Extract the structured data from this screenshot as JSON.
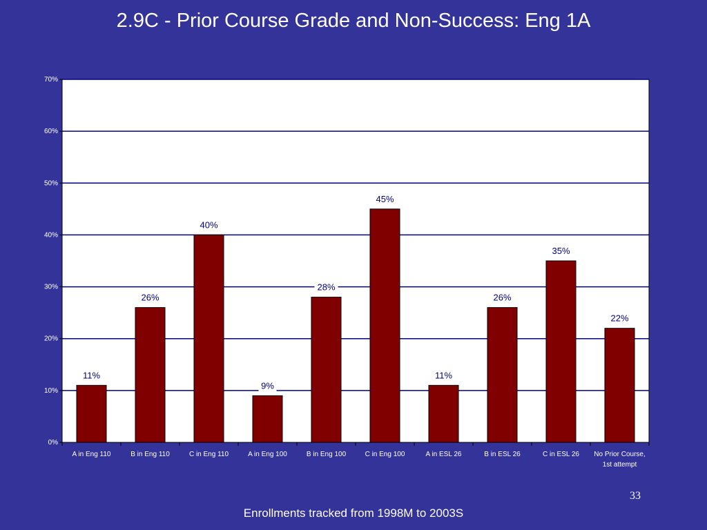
{
  "slide": {
    "title": "2.9C - Prior Course Grade and Non-Success: Eng 1A",
    "page_number": "33",
    "footer": "Enrollments tracked from 1998M to 2003S"
  },
  "colors": {
    "background": "#333399",
    "plot_area": "#ffffff",
    "bar": "#800000",
    "gridline": "#000080"
  },
  "chart_data": {
    "type": "bar",
    "categories": [
      "A in Eng 110",
      "B in Eng 110",
      "C in Eng 110",
      "A in Eng 100",
      "B in Eng 100",
      "C in Eng 100",
      "A in ESL 26",
      "B in ESL 26",
      "C in ESL 26",
      "No Prior Course, 1st attempt"
    ],
    "values": [
      11,
      26,
      40,
      9,
      28,
      45,
      11,
      26,
      35,
      22
    ],
    "data_labels": [
      "11%",
      "26%",
      "40%",
      "9%",
      "28%",
      "45%",
      "11%",
      "26%",
      "35%",
      "22%"
    ],
    "y_ticks": [
      0,
      10,
      20,
      30,
      40,
      50,
      60,
      70
    ],
    "y_tick_labels": [
      "0%",
      "10%",
      "20%",
      "30%",
      "40%",
      "50%",
      "60%",
      "70%"
    ],
    "ylim": [
      0,
      70
    ],
    "grid": true,
    "legend": "none"
  }
}
